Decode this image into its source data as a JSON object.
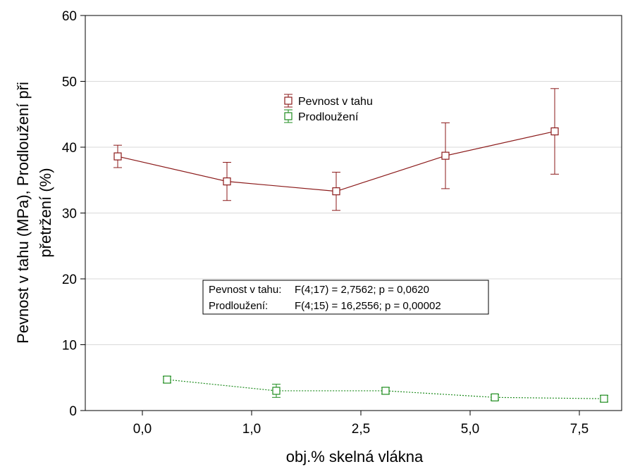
{
  "chart_data": {
    "type": "line",
    "xlabel": "obj.% skelná vlákna",
    "ylabel_line1": "Pevnost v tahu (MPa), Prodloužení při",
    "ylabel_line2": "přetržení (%)",
    "categories": [
      "0,0",
      "1,0",
      "2,5",
      "5,0",
      "7,5"
    ],
    "ylim": [
      0,
      60
    ],
    "yticks": [
      0,
      10,
      20,
      30,
      40,
      50,
      60
    ],
    "grid": "horizontal",
    "legend_position": "top-center",
    "series": [
      {
        "name": "Pevnost v tahu",
        "color": "#8b1a1a",
        "line_style": "solid",
        "offset": "left",
        "values": [
          38.6,
          34.8,
          33.3,
          38.7,
          42.4
        ],
        "err_low": [
          36.9,
          31.9,
          30.4,
          33.7,
          35.9
        ],
        "err_high": [
          40.3,
          37.7,
          36.2,
          43.7,
          48.9
        ]
      },
      {
        "name": "Prodloužení",
        "color": "#1e8c1e",
        "line_style": "dotted",
        "offset": "right",
        "values": [
          4.7,
          3.0,
          3.0,
          2.0,
          1.8
        ],
        "err_low": [
          4.2,
          2.0,
          2.5,
          1.6,
          1.3
        ],
        "err_high": [
          5.2,
          4.0,
          3.5,
          2.4,
          2.3
        ]
      }
    ],
    "stats_box": [
      {
        "label": "Pevnost v tahu:",
        "value": "F(4;17) = 2,7562; p = 0,0620"
      },
      {
        "label": "Prodloužení:",
        "value": "F(4;15) = 16,2556; p = 0,00002"
      }
    ]
  }
}
